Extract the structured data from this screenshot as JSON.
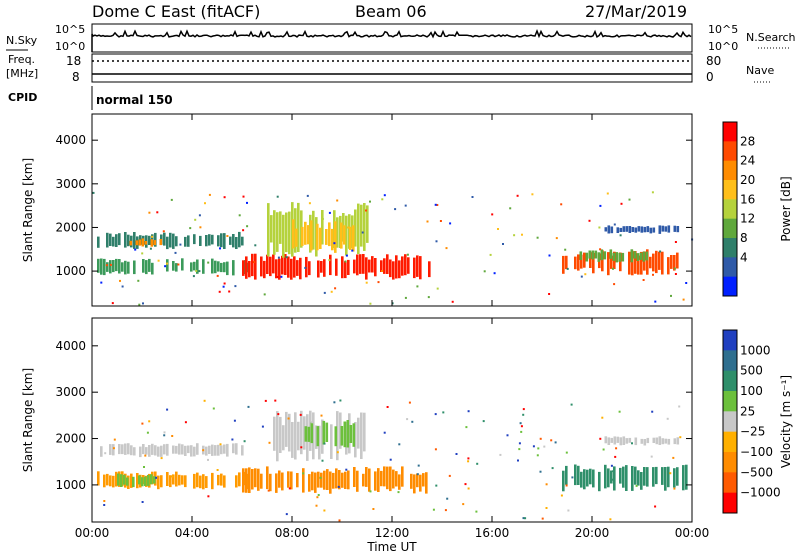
{
  "header": {
    "station": "Dome C East (fitACF)",
    "beam": "Beam 06",
    "date": "27/Mar/2019"
  },
  "nsky_panel": {
    "left_label": "N.Sky",
    "y_ticks": [
      "10^5",
      "10^0"
    ],
    "right_label": "N.Search",
    "right_ticks": [
      "10^5",
      "10^0"
    ]
  },
  "freq_panel": {
    "left_label_1": "Freq.",
    "left_label_2": "[MHz]",
    "y_ticks": [
      "18",
      "8"
    ],
    "right_label": "Nave",
    "right_ticks": [
      "80",
      "0"
    ]
  },
  "cpid": {
    "label": "CPID",
    "mode": "normal 150"
  },
  "chart_data": [
    {
      "type": "heatmap",
      "name": "power",
      "ylabel": "Slant Range [km]",
      "yticks": [
        "4000",
        "3000",
        "2000",
        "1000"
      ],
      "ylim": [
        200,
        4600
      ],
      "xlim": [
        0,
        24
      ],
      "xticks": [
        "00:00",
        "04:00",
        "08:00",
        "12:00",
        "16:00",
        "20:00",
        "00:00"
      ],
      "colorbar": {
        "label": "Power [dB]",
        "ticks": [
          "28",
          "24",
          "20",
          "16",
          "12",
          "8",
          "4"
        ],
        "colors": [
          "#ff0000",
          "#ff4a00",
          "#ff8c00",
          "#ffbf1a",
          "#b5d23c",
          "#5fa83c",
          "#2f7f6a",
          "#2f5aa8",
          "#0020ff"
        ]
      },
      "regions": [
        {
          "t0": 0.2,
          "t1": 6.0,
          "r0": 1500,
          "r1": 1900,
          "color": "#2f7f6a"
        },
        {
          "t0": 0.2,
          "t1": 6.2,
          "r0": 900,
          "r1": 1300,
          "color": "#3b9a5a"
        },
        {
          "t0": 1.5,
          "t1": 3.0,
          "r0": 1550,
          "r1": 1750,
          "color": "#ff8c00"
        },
        {
          "t0": 6.0,
          "t1": 13.5,
          "r0": 800,
          "r1": 1400,
          "color": "#ff1a00"
        },
        {
          "t0": 7.0,
          "t1": 11.0,
          "r0": 1300,
          "r1": 2600,
          "color": "#b5d23c"
        },
        {
          "t0": 8.0,
          "t1": 10.5,
          "r0": 1400,
          "r1": 2200,
          "color": "#ffbf1a"
        },
        {
          "t0": 18.8,
          "t1": 23.8,
          "r0": 900,
          "r1": 1500,
          "color": "#ff4a00"
        },
        {
          "t0": 19.5,
          "t1": 22.5,
          "r0": 1200,
          "r1": 1500,
          "color": "#5fa83c"
        },
        {
          "t0": 20.5,
          "t1": 23.5,
          "r0": 1850,
          "r1": 2050,
          "color": "#2f5aa8"
        }
      ]
    },
    {
      "type": "heatmap",
      "name": "velocity",
      "ylabel": "Slant Range [km]",
      "yticks": [
        "4000",
        "3000",
        "2000",
        "1000"
      ],
      "ylim": [
        200,
        4600
      ],
      "xlim": [
        0,
        24
      ],
      "xticks": [
        "00:00",
        "04:00",
        "08:00",
        "12:00",
        "16:00",
        "20:00",
        "00:00"
      ],
      "xlabel": "Time UT",
      "colorbar": {
        "label": "Velocity [m s⁻¹]",
        "ticks": [
          "1000",
          "500",
          "100",
          "25",
          "−25",
          "−100",
          "−500",
          "−1000"
        ],
        "colors": [
          "#2040c0",
          "#2f6f8f",
          "#2f8f6a",
          "#6cc03c",
          "#c8c8c8",
          "#ffb000",
          "#ff8c00",
          "#ff5a00",
          "#ff0000"
        ]
      },
      "regions": [
        {
          "t0": 0.2,
          "t1": 6.0,
          "r0": 1600,
          "r1": 1900,
          "color": "#c8c8c8"
        },
        {
          "t0": 0.2,
          "t1": 6.2,
          "r0": 900,
          "r1": 1300,
          "color": "#ff9a00"
        },
        {
          "t0": 1.0,
          "t1": 2.5,
          "r0": 950,
          "r1": 1250,
          "color": "#6cc03c"
        },
        {
          "t0": 6.0,
          "t1": 13.5,
          "r0": 800,
          "r1": 1400,
          "color": "#ff8c00"
        },
        {
          "t0": 7.0,
          "t1": 11.0,
          "r0": 1500,
          "r1": 2600,
          "color": "#c8c8c8"
        },
        {
          "t0": 8.5,
          "t1": 10.5,
          "r0": 1800,
          "r1": 2400,
          "color": "#6cc03c"
        },
        {
          "t0": 18.8,
          "t1": 23.8,
          "r0": 850,
          "r1": 1450,
          "color": "#2f8f6a"
        },
        {
          "t0": 20.5,
          "t1": 23.5,
          "r0": 1850,
          "r1": 2050,
          "color": "#c8c8c8"
        }
      ]
    }
  ]
}
